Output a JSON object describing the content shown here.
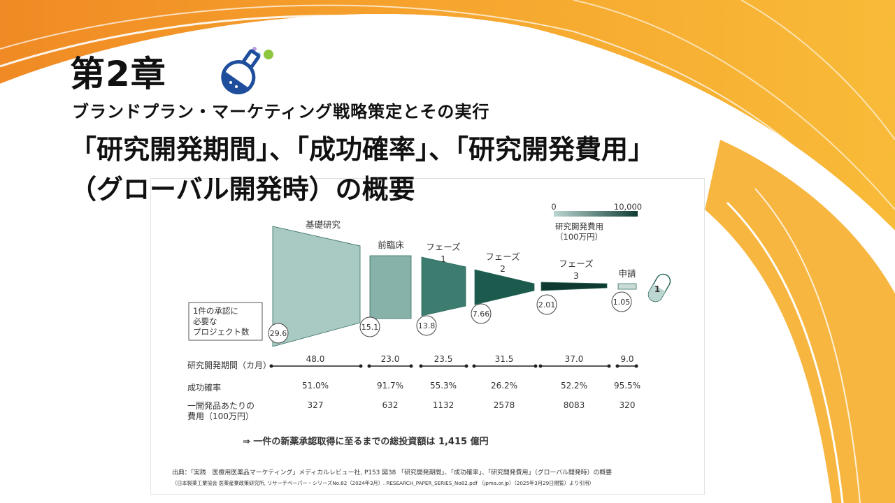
{
  "slide": {
    "chapter": "第2章",
    "subtitle": "ブランドプラン・マーケティング戦略策定とその実行",
    "title_line1": "「研究開発期間」、「成功確率」、「研究開発費用」",
    "title_line2": "（グローバル開発時）の概要"
  },
  "colors": {
    "accent_orange": "#f29a2e",
    "accent_yellow": "#f7b733",
    "flask_blue": "#1f4e9c"
  },
  "legend": {
    "min_label": "0",
    "max_label": "10,000",
    "caption_line1": "研究開発費用",
    "caption_line2": "（100万円）"
  },
  "chart_data": {
    "type": "funnel",
    "stages": [
      {
        "label": "基礎研究",
        "projects": "29.6",
        "duration": "48.0",
        "success_rate": "51.0%",
        "cost": "327"
      },
      {
        "label": "前臨床",
        "projects": "15.1",
        "duration": "23.0",
        "success_rate": "91.7%",
        "cost": "632"
      },
      {
        "label": "フェーズ\n1",
        "projects": "13.8",
        "duration": "23.5",
        "success_rate": "55.3%",
        "cost": "1132"
      },
      {
        "label": "フェーズ\n2",
        "projects": "7.66",
        "duration": "31.5",
        "success_rate": "26.2%",
        "cost": "2578"
      },
      {
        "label": "フェーズ\n3",
        "projects": "2.01",
        "duration": "37.0",
        "success_rate": "52.2%",
        "cost": "8083"
      },
      {
        "label": "申請",
        "projects": "1.05",
        "duration": "9.0",
        "success_rate": "95.5%",
        "cost": "320"
      }
    ],
    "final_count": "1",
    "projects_box_label": [
      "1件の承認に",
      "必要な",
      "プロジェクト数"
    ],
    "row_labels": {
      "duration": "研究開発期間（カ月）",
      "success_rate": "成功確率",
      "cost_line1": "一開発品あたりの",
      "cost_line2": "費用（100万円）"
    },
    "total_note": "⇒ 一件の新薬承認取得に至るまでの総投資額は 1,415 億円",
    "source_line1": "出典：「実践　医療用医薬品マーケティング」メディカルレビュー社, P153 図38 「研究開発期間」、「成功確率」、「研究開発費用」（グローバル開発時）の概要",
    "source_line2": "（日本製薬工業協会 医薬産業政策研究所, リサーチペーパー・シリーズNo.82（2024年3月）. RESEARCH_PAPER_SERIES_No82.pdf （jpma.or.jp）（2025年3月29日閲覧）より引用）"
  }
}
